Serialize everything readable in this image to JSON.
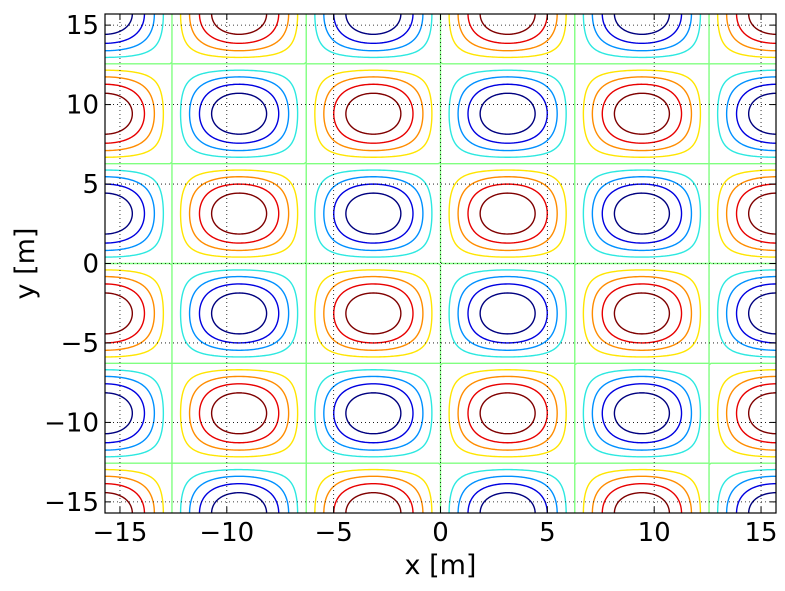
{
  "chart_data": {
    "type": "contour",
    "function": "sin(x/2) * sin(y/2)",
    "xlabel": "x [m]",
    "ylabel": "y [m]",
    "xlim": [
      -15.7,
      15.7
    ],
    "ylim": [
      -15.7,
      15.7
    ],
    "xticks": [
      -15,
      -10,
      -5,
      0,
      5,
      10,
      15
    ],
    "yticks": [
      -15,
      -10,
      -5,
      0,
      5,
      10,
      15
    ],
    "xtick_labels": [
      "−15",
      "−10",
      "−5",
      "0",
      "5",
      "10",
      "15"
    ],
    "ytick_labels": [
      "−15",
      "−10",
      "−5",
      "0",
      "5",
      "10",
      "15"
    ],
    "grid": true,
    "colormap": "jet",
    "contour_levels": [
      {
        "value": -0.8,
        "color": "#00007f"
      },
      {
        "value": -0.6,
        "color": "#0000e0"
      },
      {
        "value": -0.4,
        "color": "#0090ff"
      },
      {
        "value": -0.2,
        "color": "#2ce8e0"
      },
      {
        "value": 0.0,
        "color": "#80ff80"
      },
      {
        "value": 0.2,
        "color": "#ffe500"
      },
      {
        "value": 0.4,
        "color": "#ff8c00"
      },
      {
        "value": 0.6,
        "color": "#e80000"
      },
      {
        "value": 0.8,
        "color": "#7f0000"
      }
    ]
  }
}
